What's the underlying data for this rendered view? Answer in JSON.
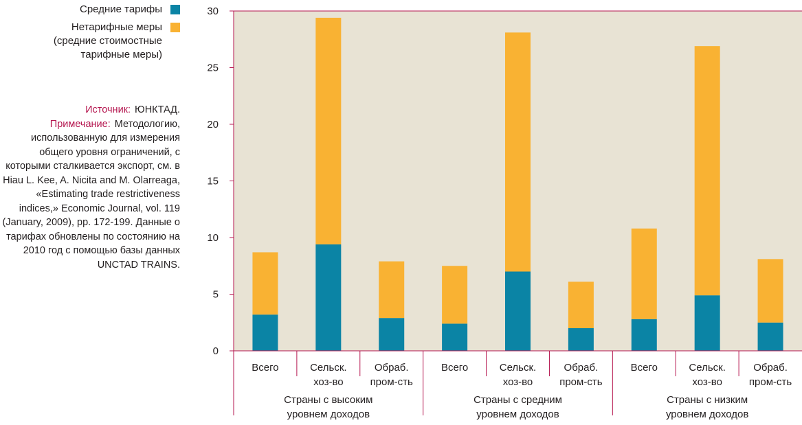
{
  "legend": {
    "tariffs_label": "Средние тарифы",
    "ntm_label_lines": [
      "Нетарифные меры",
      "(средние стоимостные",
      "тарифные меры)"
    ]
  },
  "notes": {
    "source_label": "Источник:",
    "source_text": "ЮНКТАД.",
    "note_label": "Примечание:",
    "note_text": "Методологию, использованную для измерения общего уровня ограничений, с которыми сталкивается экспорт, см. в Hiau L. Kee, A. Nicita and M. Olarreaga, «Estimating trade restrictiveness indices,» Economic Journal, vol. 119 (January, 2009), pp. 172-199. Данные о тарифах обновлены по состоянию на 2010 год с помощью базы данных UNCTAD TRAINS."
  },
  "colors": {
    "tariffs": "#0b84a5",
    "ntm": "#f9b233",
    "plot_background": "#e8e3d4",
    "accent": "#b5164f"
  },
  "chart_data": {
    "type": "bar",
    "stacked": true,
    "categories": [
      [
        "Всего"
      ],
      [
        "Сельск.",
        "хоз-во"
      ],
      [
        "Обраб.",
        "пром-сть"
      ],
      [
        "Всего"
      ],
      [
        "Сельск.",
        "хоз-во"
      ],
      [
        "Обраб.",
        "пром-сть"
      ],
      [
        "Всего"
      ],
      [
        "Сельск.",
        "хоз-во"
      ],
      [
        "Обраб.",
        "пром-сть"
      ]
    ],
    "groups": [
      [
        "Страны с высоким",
        "уровнем доходов"
      ],
      [
        "Страны с средним",
        "уровнем доходов"
      ],
      [
        "Страны с низким",
        "уровнем доходов"
      ]
    ],
    "series": [
      {
        "name": "Средние тарифы",
        "color": "#0b84a5",
        "values": [
          3.2,
          9.4,
          2.9,
          2.4,
          7.0,
          2.0,
          2.8,
          4.9,
          2.5
        ]
      },
      {
        "name": "Нетарифные меры (средние стоимостные тарифные меры)",
        "color": "#f9b233",
        "values": [
          5.5,
          20.0,
          5.0,
          5.1,
          21.1,
          4.1,
          8.0,
          22.0,
          5.6
        ]
      }
    ],
    "ylim": [
      0,
      30
    ],
    "yticks": [
      0,
      5,
      10,
      15,
      20,
      25,
      30
    ],
    "title": "",
    "xlabel": "",
    "ylabel": "",
    "grid": false,
    "legend_position": "left"
  }
}
